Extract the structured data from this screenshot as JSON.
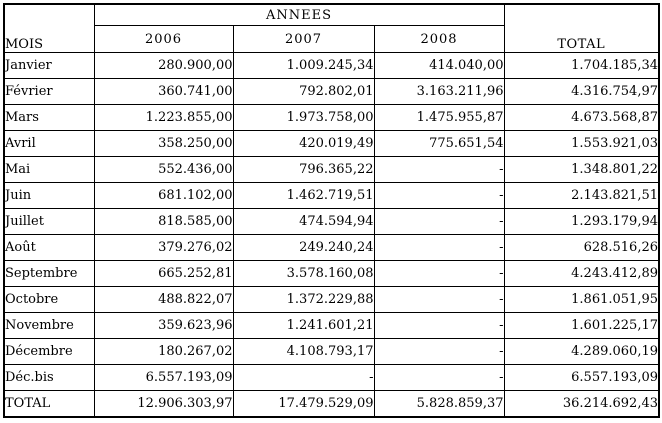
{
  "table": {
    "corner_label": "MOIS",
    "years_group_label": "ANNEES",
    "year_columns": [
      "2006",
      "2007",
      "2008"
    ],
    "total_column_label": "TOTAL",
    "rows": [
      {
        "month": "Janvier",
        "values": [
          "280.900,00",
          "1.009.245,34",
          "414.040,00"
        ],
        "total": "1.704.185,34"
      },
      {
        "month": "Février",
        "values": [
          "360.741,00",
          "792.802,01",
          "3.163.211,96"
        ],
        "total": "4.316.754,97"
      },
      {
        "month": "Mars",
        "values": [
          "1.223.855,00",
          "1.973.758,00",
          "1.475.955,87"
        ],
        "total": "4.673.568,87"
      },
      {
        "month": "Avril",
        "values": [
          "358.250,00",
          "420.019,49",
          "775.651,54"
        ],
        "total": "1.553.921,03"
      },
      {
        "month": "Mai",
        "values": [
          "552.436,00",
          "796.365,22",
          "-"
        ],
        "total": "1.348.801,22"
      },
      {
        "month": "Juin",
        "values": [
          "681.102,00",
          "1.462.719,51",
          "-"
        ],
        "total": "2.143.821,51"
      },
      {
        "month": "Juillet",
        "values": [
          "818.585,00",
          "474.594,94",
          "-"
        ],
        "total": "1.293.179,94"
      },
      {
        "month": "Août",
        "values": [
          "379.276,02",
          "249.240,24",
          "-"
        ],
        "total": "628.516,26"
      },
      {
        "month": "Septembre",
        "values": [
          "665.252,81",
          "3.578.160,08",
          "-"
        ],
        "total": "4.243.412,89"
      },
      {
        "month": "Octobre",
        "values": [
          "488.822,07",
          "1.372.229,88",
          "-"
        ],
        "total": "1.861.051,95"
      },
      {
        "month": "Novembre",
        "values": [
          "359.623,96",
          "1.241.601,21",
          "-"
        ],
        "total": "1.601.225,17"
      },
      {
        "month": "Décembre",
        "values": [
          "180.267,02",
          "4.108.793,17",
          "-"
        ],
        "total": "4.289.060,19"
      },
      {
        "month": "Déc.bis",
        "values": [
          "6.557.193,09",
          "-",
          "-"
        ],
        "total": "6.557.193,09"
      }
    ],
    "footer": {
      "label": "TOTAL",
      "values": [
        "12.906.303,97",
        "17.479.529,09",
        "5.828.859,37"
      ],
      "total": "36.214.692,43"
    }
  }
}
